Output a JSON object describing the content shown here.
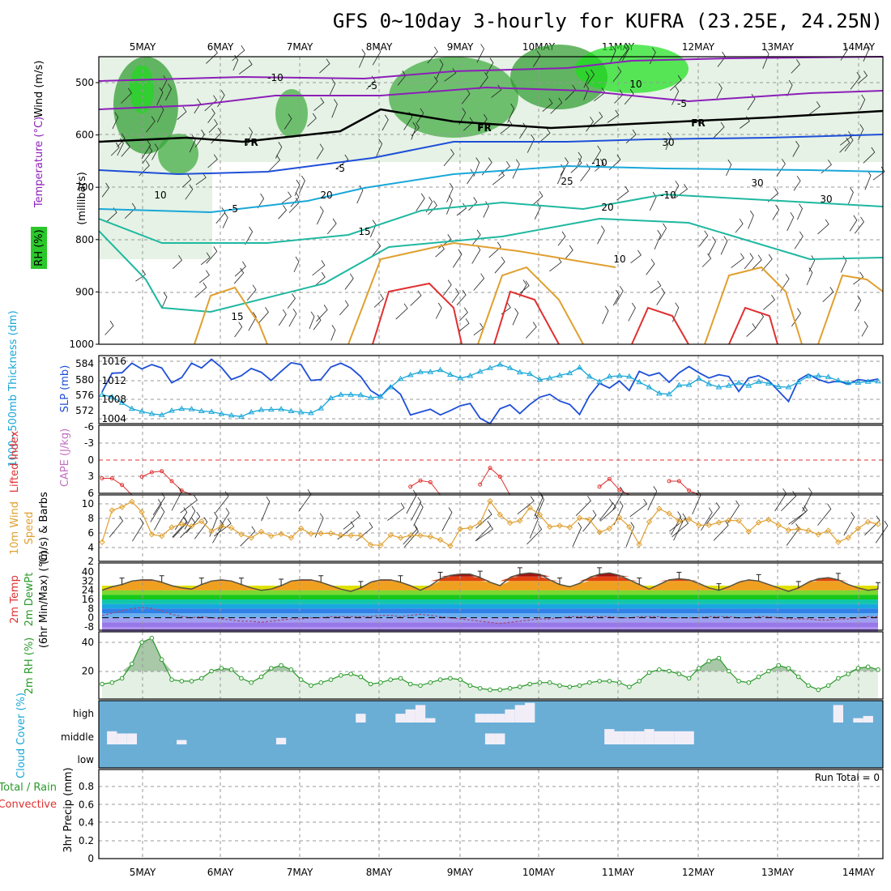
{
  "chart_data": {
    "type": "line",
    "title": "GFS 0~10day 3-hourly for KUFRA (23.25E, 24.25N)",
    "dates": [
      "5MAY",
      "6MAY",
      "7MAY",
      "8MAY",
      "9MAY",
      "10MAY",
      "11MAY",
      "12MAY",
      "13MAY",
      "14MAY"
    ],
    "colors": {
      "purple": "#8c1fb8",
      "blue": "#1e4fd8",
      "cyan": "#19a7d8",
      "teal": "#1fb8a0",
      "orange": "#e0a030",
      "red": "#e03030",
      "green": "#2a9a2a",
      "cloud": "#6aaed6"
    },
    "upper_air": {
      "ylabel": "(millibars)",
      "ylabel_segments": [
        {
          "text": "Wind (m/s)",
          "color": "#000000"
        },
        {
          "text": "Temperature (°C)",
          "color": "#8c1fb8"
        }
      ],
      "rh_label": "RH (%)",
      "yticks": [
        "500",
        "600",
        "700",
        "800",
        "900",
        "1000"
      ],
      "contour_labels": [
        "-10",
        "-5",
        "10",
        "-5",
        "FR",
        "FR",
        "FR",
        "-5",
        "-5",
        "-10",
        "-10",
        "15",
        "20",
        "15",
        "10",
        "20",
        "25",
        "30",
        "30",
        "30",
        "10"
      ]
    },
    "thickness_slp": {
      "ylabel_left": "1000~500mb Thickness (dm)",
      "ylabel_right": "SLP (mb)",
      "thickness_ticks": [
        "584",
        "580",
        "576",
        "572"
      ],
      "slp_ticks": [
        "1016",
        "1012",
        "1008",
        "1004"
      ],
      "slp": [
        1009.6,
        1013.5,
        1013.6,
        1015.6,
        1014.4,
        1015.3,
        1014.6,
        1011.5,
        1012.6,
        1015.6,
        1014.6,
        1016.4,
        1014.7,
        1012.2,
        1013.0,
        1014.5,
        1013.7,
        1012.0,
        1013.9,
        1015.7,
        1015.3,
        1012.0,
        1012.2,
        1014.8,
        1015.6,
        1014.6,
        1012.8,
        1009.9,
        1008.6,
        1010.9,
        1009.1,
        1004.8,
        1005.4,
        1006.0,
        1004.8,
        1005.7,
        1006.7,
        1007.2,
        1004.1,
        1003.0,
        1006.1,
        1006.9,
        1005.1,
        1007.0,
        1008.5,
        1009.1,
        1007.7,
        1007.0,
        1004.9,
        1008.8,
        1011.4,
        1010.4,
        1011.9,
        1009.9,
        1013.9,
        1013.0,
        1013.6,
        1011.6,
        1013.6,
        1014.9,
        1013.6,
        1012.5,
        1013.2,
        1012.8,
        1009.7,
        1012.5,
        1013.0,
        1012.0,
        1009.8,
        1007.6,
        1012.1,
        1013.3,
        1012.2,
        1011.5,
        1011.9,
        1011.2,
        1012.2,
        1011.9,
        1012.3
      ],
      "thickness": [
        576.1,
        575.5,
        574.0,
        572.5,
        571.8,
        571.2,
        570.9,
        572.0,
        572.5,
        572.4,
        571.9,
        571.7,
        571.2,
        570.8,
        570.5,
        571.6,
        572.2,
        572.3,
        572.4,
        571.9,
        571.6,
        571.4,
        572.6,
        575.2,
        576.1,
        576.1,
        576.0,
        575.3,
        575.6,
        578.0,
        580.1,
        581.1,
        581.9,
        581.9,
        582.4,
        581.2,
        580.3,
        580.9,
        582.0,
        582.9,
        583.8,
        582.9,
        581.8,
        581.4,
        579.9,
        580.3,
        581.0,
        581.6,
        583.0,
        580.7,
        579.4,
        580.7,
        580.9,
        580.7,
        579.3,
        578.0,
        576.4,
        576.2,
        578.5,
        578.6,
        580.2,
        578.8,
        578.0,
        578.4,
        579.1,
        578.4,
        579.4,
        579.0,
        578.1,
        578.0,
        579.3,
        580.8,
        580.9,
        580.6,
        579.7,
        579.1,
        579.2,
        579.4,
        579.5
      ]
    },
    "stability": {
      "ylabel_left": "Lifted Index",
      "ylabel_right": "CAPE (J/kg)",
      "yticks": [
        "-6",
        "-3",
        "0",
        "3",
        "6"
      ],
      "lifted_index": [
        3.3,
        3.3,
        4.5,
        6.3,
        3.0,
        2.2,
        2.0,
        3.8,
        5.5,
        6.4,
        6.4,
        6.4,
        6.4,
        6.4,
        6.4,
        6.4,
        6.4,
        6.4,
        6.4,
        6.4,
        6.4,
        6.4,
        6.4,
        6.4,
        6.4,
        6.4,
        6.4,
        6.4,
        6.4,
        6.4,
        6.4,
        4.8,
        3.7,
        4.0,
        6.4,
        6.4,
        6.4,
        6.4,
        4.4,
        1.4,
        3.0,
        6.4,
        6.4,
        6.4,
        6.4,
        6.4,
        6.4,
        6.4,
        6.4,
        6.4,
        4.8,
        3.4,
        5.4,
        6.4,
        6.4,
        6.4,
        6.4,
        3.8,
        3.8,
        5.5,
        6.4,
        6.4,
        6.4,
        6.4,
        6.4,
        6.4,
        6.4,
        6.4,
        6.4,
        6.4,
        6.4,
        6.4,
        6.4,
        6.4,
        6.4,
        6.4,
        6.4,
        6.4,
        6.4
      ]
    },
    "wind": {
      "ylabel": "10m Wind Speed (m/s) & Barbs",
      "ylabel_segments": [
        {
          "text": "10m Wind",
          "color": "#e0a030"
        },
        {
          "text": "Speed",
          "color": "#e0a030"
        },
        {
          "text": "(m/s) & Barbs",
          "color": "#000000"
        }
      ],
      "yticks": [
        "10",
        "8",
        "6",
        "4",
        "2"
      ],
      "speed": [
        3.0,
        8.8,
        9.4,
        10.4,
        8.5,
        4.4,
        4.1,
        5.7,
        6.3,
        5.9,
        6.8,
        5.0,
        5.9,
        5.6,
        4.4,
        3.8,
        4.9,
        4.1,
        4.5,
        3.8,
        5.5,
        4.5,
        4.6,
        4.6,
        4.2,
        4.2,
        4.2,
        2.5,
        2.4,
        4.3,
        3.8,
        4.2,
        4.2,
        4.0,
        3.4,
        2.3,
        5.4,
        5.6,
        6.5,
        10.5,
        8.0,
        6.5,
        6.9,
        9.3,
        8.0,
        5.8,
        6.0,
        5.7,
        7.4,
        7.1,
        4.8,
        5.5,
        7.5,
        5.8,
        2.6,
        6.7,
        9.1,
        8.2,
        6.8,
        7.2,
        6.1,
        6.1,
        6.6,
        7.0,
        6.9,
        4.9,
        6.6,
        7.1,
        6.1,
        5.2,
        5.4,
        5.1,
        4.4,
        5.1,
        3.0,
        3.8,
        5.5,
        6.7,
        6.3
      ]
    },
    "temperature": {
      "ylabel_segments": [
        {
          "text": "2m Temp",
          "color": "#e03030"
        },
        {
          "text": "2m DewPt",
          "color": "#2a9a2a"
        },
        {
          "text": "(6hr Min/Max) (°C)",
          "color": "#000000"
        }
      ],
      "yticks": [
        "40",
        "32",
        "24",
        "16",
        "8",
        "0",
        "-8"
      ],
      "temp": [
        24,
        27,
        29,
        32,
        33,
        33,
        31,
        28,
        26,
        25,
        29,
        32,
        33,
        32,
        29,
        26,
        24,
        25,
        28,
        32,
        33,
        33,
        31,
        28,
        25,
        23,
        26,
        31,
        33,
        33,
        31,
        28,
        24,
        28,
        34,
        37,
        38,
        38,
        35,
        31,
        28,
        35,
        38,
        39,
        38,
        33,
        29,
        27,
        30,
        35,
        38,
        39,
        37,
        33,
        29,
        25,
        29,
        33,
        34,
        33,
        30,
        26,
        24,
        27,
        31,
        33,
        32,
        29,
        26,
        23,
        26,
        31,
        34,
        35,
        33,
        29,
        26,
        24,
        25
      ],
      "dewpoint": [
        2,
        4,
        6,
        8,
        9,
        8,
        6,
        3,
        1,
        0,
        1,
        0,
        -1,
        -2,
        -3,
        -3,
        -4,
        -3,
        -2,
        -1,
        -1,
        0,
        0,
        1,
        1,
        1,
        1,
        1,
        2,
        2,
        1,
        2,
        3,
        2,
        1,
        0,
        -1,
        -2,
        -3,
        -4,
        -5,
        -4,
        -3,
        -2,
        -1,
        -1,
        0,
        1,
        1,
        1,
        1,
        1,
        0,
        0,
        1,
        1,
        1,
        0,
        0,
        0,
        0,
        1,
        1,
        1,
        0,
        0,
        1,
        1,
        0,
        -1,
        -1,
        -1,
        -2,
        -2,
        -1,
        -1,
        0,
        1,
        1
      ]
    },
    "rh": {
      "ylabel": "2m RH (%)",
      "yticks": [
        "40",
        "20"
      ],
      "values": [
        11,
        12,
        15,
        25,
        40,
        43,
        28,
        14,
        13,
        13,
        15,
        20,
        22,
        21,
        15,
        12,
        16,
        22,
        24,
        21,
        14,
        10,
        12,
        14,
        17,
        18,
        16,
        11,
        12,
        14,
        15,
        11,
        10,
        12,
        14,
        15,
        14,
        10,
        8,
        7,
        7,
        8,
        9,
        11,
        12,
        12,
        10,
        9,
        10,
        12,
        13,
        13,
        12,
        9,
        13,
        19,
        21,
        20,
        18,
        15,
        22,
        27,
        29,
        20,
        13,
        12,
        16,
        20,
        24,
        22,
        16,
        10,
        7,
        10,
        15,
        18,
        22,
        23,
        21
      ]
    },
    "cloud": {
      "ylabel": "Cloud Cover (%)",
      "yticks": [
        "high",
        "middle",
        "low"
      ],
      "high": [
        0,
        0,
        0,
        0,
        0,
        0,
        0,
        0,
        0,
        0,
        0,
        0,
        0,
        0,
        0,
        0,
        0,
        0,
        0,
        0,
        0,
        0,
        0,
        0,
        0,
        0,
        40,
        0,
        0,
        0,
        40,
        60,
        80,
        20,
        0,
        0,
        0,
        0,
        40,
        40,
        40,
        60,
        80,
        90,
        0,
        0,
        0,
        0,
        0,
        0,
        0,
        0,
        0,
        0,
        0,
        0,
        0,
        0,
        0,
        0,
        0,
        0,
        0,
        0,
        0,
        0,
        0,
        0,
        0,
        0,
        0,
        0,
        0,
        0,
        80,
        0,
        20,
        30,
        0
      ],
      "middle": [
        0,
        60,
        50,
        50,
        0,
        0,
        0,
        0,
        20,
        0,
        0,
        0,
        0,
        0,
        0,
        0,
        0,
        0,
        30,
        0,
        0,
        0,
        0,
        0,
        0,
        0,
        0,
        0,
        0,
        0,
        0,
        0,
        0,
        0,
        0,
        0,
        0,
        0,
        0,
        50,
        50,
        0,
        0,
        0,
        0,
        0,
        0,
        0,
        0,
        0,
        0,
        70,
        60,
        60,
        60,
        70,
        60,
        60,
        60,
        60,
        0,
        0,
        0,
        0,
        0,
        0,
        0,
        0,
        0,
        0,
        0,
        0,
        0,
        0,
        0,
        0,
        0,
        0,
        0
      ],
      "low": [
        0,
        0,
        0,
        0,
        0,
        0,
        0,
        0,
        0,
        0,
        0,
        0,
        0,
        0,
        0,
        0,
        0,
        0,
        0,
        0,
        0,
        0,
        0,
        0,
        0,
        0,
        0,
        0,
        0,
        0,
        0,
        0,
        0,
        0,
        0,
        0,
        0,
        0,
        0,
        0,
        0,
        0,
        0,
        0,
        0,
        0,
        0,
        0,
        0,
        0,
        0,
        0,
        0,
        0,
        0,
        0,
        0,
        0,
        0,
        0,
        0,
        0,
        0,
        0,
        0,
        0,
        0,
        0,
        0,
        0,
        0,
        0,
        0,
        0,
        0,
        0,
        0,
        0,
        0
      ]
    },
    "precip": {
      "ylabel_left": "3hr Precip (mm)",
      "ylabel_segments": [
        {
          "text": "Total / Rain",
          "color": "#2a9a2a"
        },
        {
          "text": "Convective",
          "color": "#e03030"
        }
      ],
      "yticks": [
        "0.8",
        "0.6",
        "0.4",
        "0.2",
        "0"
      ],
      "ylim": [
        0,
        0.9
      ],
      "run_total": "Run Total = 0"
    }
  }
}
